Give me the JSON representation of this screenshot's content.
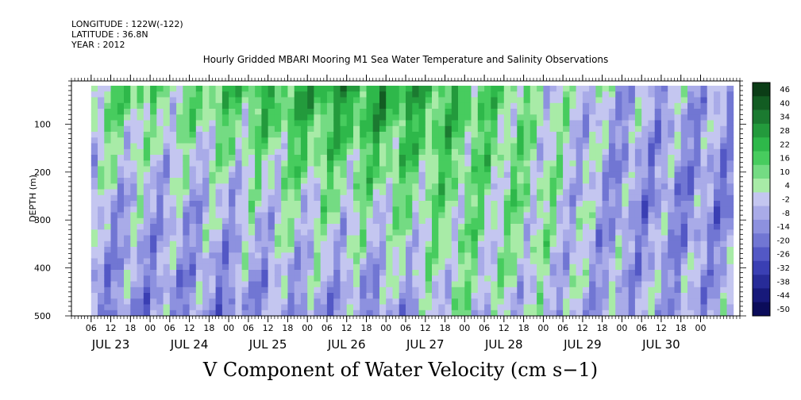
{
  "header": {
    "longitude": "LONGITUDE : 122W(-122)",
    "latitude": "LATITUDE : 36.8N",
    "year": "YEAR : 2012"
  },
  "plot_title": "Hourly Gridded MBARI Mooring M1 Sea Water Temperature and Salinity Observations",
  "main_title": "V Component of Water Velocity (cm s−1)",
  "chart_data": {
    "type": "heatmap",
    "title": "Hourly Gridded MBARI Mooring M1 Sea Water Temperature and Salinity Observations",
    "xlabel": "",
    "ylabel": "DEPTH (m)",
    "y_axis": {
      "range": [
        10,
        500
      ],
      "reversed": true,
      "ticks": [
        100,
        200,
        300,
        400,
        500
      ]
    },
    "x_axis": {
      "range_hours": [
        0,
        204
      ],
      "hour_tick_labels": [
        "06",
        "12",
        "18",
        "00",
        "06",
        "12",
        "18",
        "00",
        "06",
        "12",
        "18",
        "00",
        "06",
        "12",
        "18",
        "00",
        "06",
        "12",
        "18",
        "00",
        "06",
        "12",
        "18",
        "00",
        "06",
        "12",
        "18",
        "00",
        "06",
        "12",
        "18",
        "00"
      ],
      "day_labels": [
        "JUL 23",
        "JUL 24",
        "JUL 25",
        "JUL 26",
        "JUL 27",
        "JUL 28",
        "JUL 29",
        "JUL 30"
      ]
    },
    "colorbar": {
      "levels": [
        "46",
        "40",
        "34",
        "28",
        "22",
        "16",
        "10",
        "4",
        "-2",
        "-8",
        "-14",
        "-20",
        "-26",
        "-32",
        "-38",
        "-44",
        "-50"
      ],
      "colors": [
        "#0b3d16",
        "#125c22",
        "#1b7a30",
        "#239a3c",
        "#2eb84a",
        "#47cc5e",
        "#74db83",
        "#a8eba7",
        "#c4c6f0",
        "#a9abe8",
        "#8d91df",
        "#7176d3",
        "#5358c5",
        "#3a3fb3",
        "#272b98",
        "#17197a",
        "#0b0c5a"
      ]
    },
    "grid": false,
    "legend_position": "right",
    "depth_profile_mean_by_day": [
      {
        "day": "JUL 23",
        "near_surface": 6,
        "mid_depth": -8,
        "deep": -12
      },
      {
        "day": "JUL 24",
        "near_surface": 14,
        "mid_depth": -6,
        "deep": -14
      },
      {
        "day": "JUL 25",
        "near_surface": 22,
        "mid_depth": 2,
        "deep": -10
      },
      {
        "day": "JUL 26",
        "near_surface": 26,
        "mid_depth": 4,
        "deep": -14
      },
      {
        "day": "JUL 27",
        "near_surface": 18,
        "mid_depth": 8,
        "deep": 2
      },
      {
        "day": "JUL 28",
        "near_surface": 4,
        "mid_depth": 6,
        "deep": -4
      },
      {
        "day": "JUL 29",
        "near_surface": -6,
        "mid_depth": -12,
        "deep": -8
      },
      {
        "day": "JUL 30",
        "near_surface": -8,
        "mid_depth": -14,
        "deep": -8
      }
    ]
  }
}
